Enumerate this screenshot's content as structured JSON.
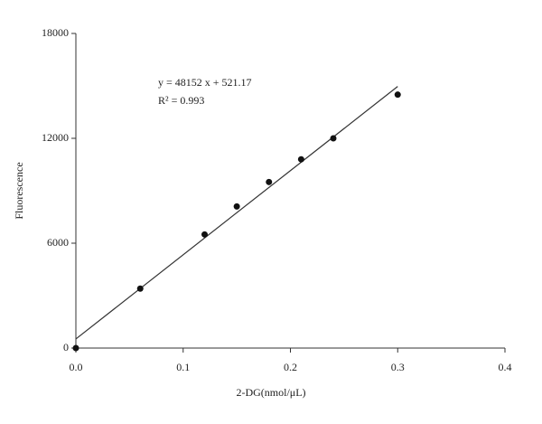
{
  "chart_data": {
    "type": "scatter",
    "x_label": "2-DG(nmol/μL)",
    "y_label": "Fluorescence",
    "annotations": [
      "y = 48152 x + 521.17",
      "R² = 0.993"
    ],
    "x": [
      0,
      0.06,
      0.12,
      0.15,
      0.18,
      0.21,
      0.24,
      0.3
    ],
    "values": [
      0,
      3400,
      6500,
      8100,
      9500,
      10800,
      12000,
      14500
    ],
    "color": "#111",
    "fit_line": {
      "x": [
        0,
        0.3
      ],
      "values": [
        521,
        14967
      ]
    },
    "xlim": [
      0,
      0.4
    ],
    "ylim": [
      0,
      18000
    ],
    "xticks": [
      {
        "value": 0,
        "label": "0.0"
      },
      0.1,
      0.2,
      0.3,
      0.4
    ],
    "yticks": [
      0,
      6000,
      12000,
      18000
    ]
  }
}
